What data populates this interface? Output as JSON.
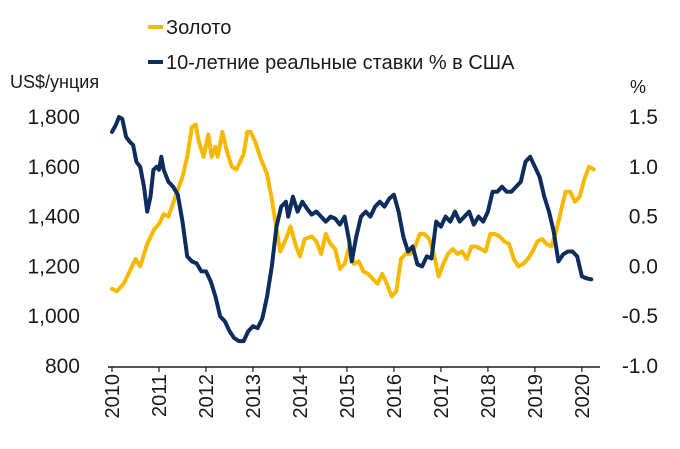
{
  "chart_data": {
    "type": "line",
    "title": "",
    "legend": {
      "position": "top-left"
    },
    "left_axis": {
      "label": "US$/унция",
      "ticks": [
        "1,800",
        "1,600",
        "1,400",
        "1,200",
        "1,000",
        "800"
      ],
      "range": [
        800,
        1800
      ]
    },
    "right_axis": {
      "label": "%",
      "ticks": [
        "1.5",
        "1.0",
        "0.5",
        "0.0",
        "-0.5",
        "-1.0"
      ],
      "range": [
        -1.0,
        1.5
      ]
    },
    "x_axis": {
      "ticks": [
        "2010",
        "2011",
        "2012",
        "2013",
        "2014",
        "2015",
        "2016",
        "2017",
        "2018",
        "2019",
        "2020"
      ],
      "range": [
        2010.0,
        2020.3
      ]
    },
    "grid": false,
    "series": [
      {
        "name": "Золото",
        "axis": "left",
        "color": "#F7B800",
        "points": [
          [
            2010.0,
            1110
          ],
          [
            2010.1,
            1100
          ],
          [
            2010.25,
            1130
          ],
          [
            2010.4,
            1190
          ],
          [
            2010.5,
            1230
          ],
          [
            2010.6,
            1200
          ],
          [
            2010.75,
            1290
          ],
          [
            2010.9,
            1350
          ],
          [
            2011.0,
            1370
          ],
          [
            2011.1,
            1410
          ],
          [
            2011.2,
            1400
          ],
          [
            2011.35,
            1480
          ],
          [
            2011.5,
            1560
          ],
          [
            2011.6,
            1640
          ],
          [
            2011.7,
            1760
          ],
          [
            2011.78,
            1770
          ],
          [
            2011.85,
            1700
          ],
          [
            2011.95,
            1640
          ],
          [
            2012.05,
            1730
          ],
          [
            2012.12,
            1640
          ],
          [
            2012.2,
            1680
          ],
          [
            2012.25,
            1640
          ],
          [
            2012.35,
            1740
          ],
          [
            2012.45,
            1660
          ],
          [
            2012.55,
            1600
          ],
          [
            2012.65,
            1590
          ],
          [
            2012.8,
            1650
          ],
          [
            2012.88,
            1740
          ],
          [
            2012.95,
            1740
          ],
          [
            2013.05,
            1700
          ],
          [
            2013.15,
            1640
          ],
          [
            2013.3,
            1570
          ],
          [
            2013.4,
            1470
          ],
          [
            2013.5,
            1350
          ],
          [
            2013.58,
            1260
          ],
          [
            2013.7,
            1310
          ],
          [
            2013.8,
            1360
          ],
          [
            2013.9,
            1290
          ],
          [
            2014.0,
            1240
          ],
          [
            2014.1,
            1310
          ],
          [
            2014.25,
            1320
          ],
          [
            2014.35,
            1300
          ],
          [
            2014.45,
            1250
          ],
          [
            2014.55,
            1330
          ],
          [
            2014.65,
            1290
          ],
          [
            2014.75,
            1270
          ],
          [
            2014.85,
            1190
          ],
          [
            2014.95,
            1210
          ],
          [
            2015.05,
            1280
          ],
          [
            2015.15,
            1210
          ],
          [
            2015.25,
            1220
          ],
          [
            2015.35,
            1180
          ],
          [
            2015.45,
            1170
          ],
          [
            2015.55,
            1150
          ],
          [
            2015.65,
            1130
          ],
          [
            2015.75,
            1170
          ],
          [
            2015.85,
            1130
          ],
          [
            2015.95,
            1080
          ],
          [
            2016.05,
            1100
          ],
          [
            2016.15,
            1230
          ],
          [
            2016.25,
            1250
          ],
          [
            2016.35,
            1250
          ],
          [
            2016.45,
            1280
          ],
          [
            2016.55,
            1330
          ],
          [
            2016.65,
            1330
          ],
          [
            2016.75,
            1310
          ],
          [
            2016.85,
            1250
          ],
          [
            2016.95,
            1160
          ],
          [
            2017.05,
            1210
          ],
          [
            2017.15,
            1250
          ],
          [
            2017.25,
            1270
          ],
          [
            2017.35,
            1250
          ],
          [
            2017.45,
            1260
          ],
          [
            2017.55,
            1230
          ],
          [
            2017.65,
            1280
          ],
          [
            2017.75,
            1280
          ],
          [
            2017.85,
            1270
          ],
          [
            2017.95,
            1260
          ],
          [
            2018.05,
            1330
          ],
          [
            2018.15,
            1330
          ],
          [
            2018.25,
            1320
          ],
          [
            2018.35,
            1300
          ],
          [
            2018.45,
            1290
          ],
          [
            2018.55,
            1230
          ],
          [
            2018.65,
            1200
          ],
          [
            2018.75,
            1210
          ],
          [
            2018.85,
            1230
          ],
          [
            2018.95,
            1260
          ],
          [
            2019.05,
            1300
          ],
          [
            2019.15,
            1310
          ],
          [
            2019.25,
            1290
          ],
          [
            2019.35,
            1280
          ],
          [
            2019.45,
            1340
          ],
          [
            2019.55,
            1420
          ],
          [
            2019.65,
            1500
          ],
          [
            2019.75,
            1500
          ],
          [
            2019.85,
            1460
          ],
          [
            2019.95,
            1480
          ],
          [
            2020.05,
            1550
          ],
          [
            2020.15,
            1600
          ],
          [
            2020.25,
            1590
          ]
        ]
      },
      {
        "name": "10-летние реальные ставки % в США",
        "axis": "right",
        "color": "#0D2D5E",
        "points": [
          [
            2010.0,
            1.35
          ],
          [
            2010.08,
            1.42
          ],
          [
            2010.15,
            1.5
          ],
          [
            2010.22,
            1.48
          ],
          [
            2010.3,
            1.3
          ],
          [
            2010.38,
            1.25
          ],
          [
            2010.45,
            1.22
          ],
          [
            2010.52,
            1.05
          ],
          [
            2010.6,
            1.0
          ],
          [
            2010.68,
            0.8
          ],
          [
            2010.75,
            0.55
          ],
          [
            2010.82,
            0.7
          ],
          [
            2010.88,
            0.97
          ],
          [
            2010.95,
            1.0
          ],
          [
            2011.0,
            0.97
          ],
          [
            2011.05,
            1.1
          ],
          [
            2011.1,
            0.97
          ],
          [
            2011.2,
            0.85
          ],
          [
            2011.3,
            0.8
          ],
          [
            2011.4,
            0.72
          ],
          [
            2011.5,
            0.45
          ],
          [
            2011.6,
            0.1
          ],
          [
            2011.7,
            0.05
          ],
          [
            2011.8,
            0.03
          ],
          [
            2011.9,
            -0.05
          ],
          [
            2012.0,
            -0.05
          ],
          [
            2012.1,
            -0.15
          ],
          [
            2012.2,
            -0.3
          ],
          [
            2012.3,
            -0.5
          ],
          [
            2012.4,
            -0.55
          ],
          [
            2012.5,
            -0.65
          ],
          [
            2012.6,
            -0.72
          ],
          [
            2012.7,
            -0.75
          ],
          [
            2012.8,
            -0.75
          ],
          [
            2012.9,
            -0.65
          ],
          [
            2013.0,
            -0.6
          ],
          [
            2013.1,
            -0.62
          ],
          [
            2013.2,
            -0.52
          ],
          [
            2013.3,
            -0.3
          ],
          [
            2013.4,
            0.0
          ],
          [
            2013.5,
            0.4
          ],
          [
            2013.6,
            0.6
          ],
          [
            2013.7,
            0.65
          ],
          [
            2013.75,
            0.5
          ],
          [
            2013.85,
            0.7
          ],
          [
            2013.95,
            0.55
          ],
          [
            2014.05,
            0.65
          ],
          [
            2014.15,
            0.58
          ],
          [
            2014.25,
            0.52
          ],
          [
            2014.35,
            0.55
          ],
          [
            2014.45,
            0.5
          ],
          [
            2014.55,
            0.45
          ],
          [
            2014.65,
            0.5
          ],
          [
            2014.75,
            0.48
          ],
          [
            2014.85,
            0.42
          ],
          [
            2014.95,
            0.5
          ],
          [
            2015.05,
            0.25
          ],
          [
            2015.1,
            0.05
          ],
          [
            2015.2,
            0.3
          ],
          [
            2015.3,
            0.5
          ],
          [
            2015.4,
            0.55
          ],
          [
            2015.5,
            0.5
          ],
          [
            2015.6,
            0.6
          ],
          [
            2015.7,
            0.65
          ],
          [
            2015.8,
            0.6
          ],
          [
            2015.9,
            0.68
          ],
          [
            2016.0,
            0.72
          ],
          [
            2016.1,
            0.55
          ],
          [
            2016.2,
            0.3
          ],
          [
            2016.3,
            0.15
          ],
          [
            2016.4,
            0.2
          ],
          [
            2016.5,
            0.02
          ],
          [
            2016.6,
            0.0
          ],
          [
            2016.7,
            0.1
          ],
          [
            2016.8,
            0.08
          ],
          [
            2016.9,
            0.45
          ],
          [
            2017.0,
            0.4
          ],
          [
            2017.1,
            0.5
          ],
          [
            2017.2,
            0.45
          ],
          [
            2017.3,
            0.55
          ],
          [
            2017.4,
            0.45
          ],
          [
            2017.5,
            0.5
          ],
          [
            2017.6,
            0.55
          ],
          [
            2017.7,
            0.42
          ],
          [
            2017.8,
            0.5
          ],
          [
            2017.9,
            0.45
          ],
          [
            2018.0,
            0.55
          ],
          [
            2018.1,
            0.75
          ],
          [
            2018.2,
            0.75
          ],
          [
            2018.3,
            0.8
          ],
          [
            2018.4,
            0.75
          ],
          [
            2018.5,
            0.75
          ],
          [
            2018.6,
            0.8
          ],
          [
            2018.7,
            0.85
          ],
          [
            2018.8,
            1.05
          ],
          [
            2018.9,
            1.1
          ],
          [
            2019.0,
            1.0
          ],
          [
            2019.1,
            0.9
          ],
          [
            2019.2,
            0.7
          ],
          [
            2019.3,
            0.55
          ],
          [
            2019.4,
            0.35
          ],
          [
            2019.5,
            0.05
          ],
          [
            2019.6,
            0.12
          ],
          [
            2019.7,
            0.15
          ],
          [
            2019.8,
            0.15
          ],
          [
            2019.9,
            0.1
          ],
          [
            2020.0,
            -0.1
          ],
          [
            2020.1,
            -0.12
          ],
          [
            2020.2,
            -0.13
          ]
        ]
      }
    ]
  }
}
